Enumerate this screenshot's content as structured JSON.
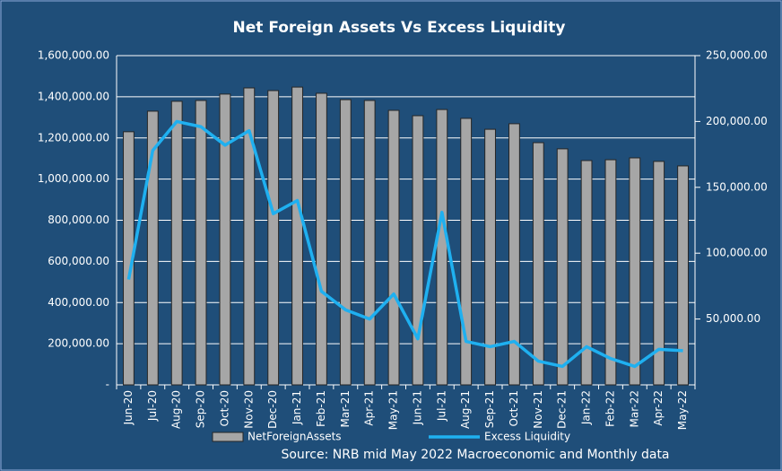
{
  "chart_data": {
    "type": "bar_line",
    "title": "Net Foreign Assets Vs Excess Liquidity",
    "source": "Source: NRB mid May 2022 Macroeconomic and Monthly data",
    "categories": [
      "Jun-20",
      "Jul-20",
      "Aug-20",
      "Sep-20",
      "Oct-20",
      "Nov-20",
      "Dec-20",
      "Jan-21",
      "Feb-21",
      "Mar-21",
      "Apr-21",
      "May-21",
      "Jun-21",
      "Jul-21",
      "Aug-21",
      "Sep-21",
      "Oct-21",
      "Nov-21",
      "Dec-21",
      "Jan-22",
      "Feb-22",
      "Mar-22",
      "Apr-22",
      "May-22"
    ],
    "series": [
      {
        "name": "NetForeignAssets",
        "kind": "bar",
        "color": "#a6a6a6",
        "values": [
          1230000,
          1330000,
          1378000,
          1382000,
          1413000,
          1443000,
          1430000,
          1447000,
          1417000,
          1386000,
          1382000,
          1334000,
          1308000,
          1338000,
          1295000,
          1242000,
          1269000,
          1177000,
          1147000,
          1090000,
          1094000,
          1103000,
          1086000,
          1064000
        ]
      },
      {
        "name": "Excess Liquidity",
        "kind": "line",
        "axis": "y2",
        "color": "#1fb0f0",
        "values": [
          80000,
          178000,
          200000,
          196000,
          182000,
          193000,
          130000,
          140000,
          71000,
          57000,
          50000,
          69000,
          35000,
          131000,
          33000,
          29000,
          33000,
          18000,
          14000,
          29000,
          20000,
          14000,
          27000,
          26000
        ]
      }
    ],
    "ylim": [
      0,
      1600000
    ],
    "yticks": [
      {
        "value": 0,
        "label": "-"
      },
      {
        "value": 200000,
        "label": "200,000.00"
      },
      {
        "value": 400000,
        "label": "400,000.00"
      },
      {
        "value": 600000,
        "label": "600,000.00"
      },
      {
        "value": 800000,
        "label": "800,000.00"
      },
      {
        "value": 1000000,
        "label": "1,000,000.00"
      },
      {
        "value": 1200000,
        "label": "1,200,000.00"
      },
      {
        "value": 1400000,
        "label": "1,400,000.00"
      },
      {
        "value": 1600000,
        "label": "1,600,000.00"
      }
    ],
    "y2lim": [
      0,
      250000
    ],
    "y2ticks": [
      {
        "value": 50000,
        "label": "50,000.00"
      },
      {
        "value": 100000,
        "label": "100,000.00"
      },
      {
        "value": 150000,
        "label": "150,000.00"
      },
      {
        "value": 200000,
        "label": "200,000.00"
      },
      {
        "value": 250000,
        "label": "250,000.00"
      }
    ],
    "grid": true
  }
}
